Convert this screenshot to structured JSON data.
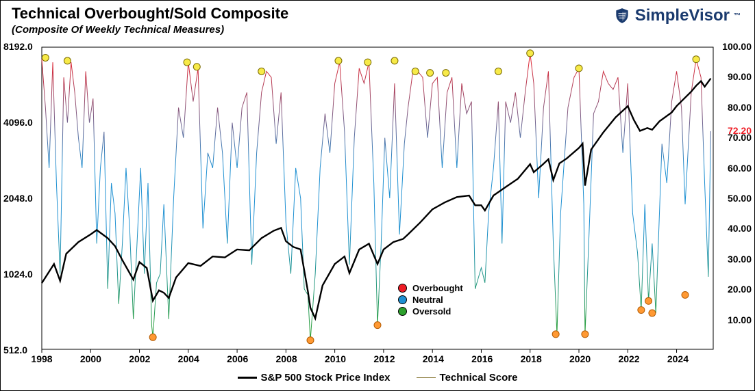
{
  "title": "Technical Overbought/Sold Composite",
  "subtitle": "(Composite Of Weekly Technical Measures)",
  "logo_text": "SimpleVisor",
  "logo_color": "#1a3a6e",
  "chart": {
    "type": "line",
    "background_color": "#ffffff",
    "border_color": "#000000",
    "x_axis": {
      "min": 1998,
      "max": 2025.5,
      "ticks": [
        1998,
        2000,
        2002,
        2004,
        2006,
        2008,
        2010,
        2012,
        2014,
        2016,
        2018,
        2020,
        2022,
        2024
      ],
      "label_fontsize": 14,
      "label_fontweight": "bold"
    },
    "y_left": {
      "scale": "log",
      "min": 512,
      "max": 8192,
      "ticks": [
        512.0,
        1024.0,
        2048.0,
        4096.0,
        8192.0
      ],
      "label_fontsize": 14,
      "label_fontweight": "bold"
    },
    "y_right": {
      "scale": "linear",
      "min": 0,
      "max": 100,
      "ticks": [
        10.0,
        20.0,
        30.0,
        40.0,
        50.0,
        60.0,
        70.0,
        80.0,
        90.0,
        100.0
      ],
      "current_value": 72.2,
      "current_color": "#ee1c25",
      "label_fontsize": 14,
      "label_fontweight": "bold"
    },
    "composite_grad": {
      "top": "#ee1c25",
      "mid": "#1e90d2",
      "bottom": "#2ca02c"
    },
    "composite_line_width": 1.0,
    "composite_series": {
      "x": [
        1998.0,
        1998.15,
        1998.3,
        1998.45,
        1998.6,
        1998.75,
        1998.9,
        1999.05,
        1999.2,
        1999.35,
        1999.5,
        1999.65,
        1999.8,
        1999.95,
        2000.1,
        2000.25,
        2000.4,
        2000.55,
        2000.7,
        2000.85,
        2001.0,
        2001.15,
        2001.3,
        2001.45,
        2001.6,
        2001.75,
        2001.9,
        2002.05,
        2002.2,
        2002.35,
        2002.5,
        2002.55,
        2002.7,
        2002.85,
        2003.0,
        2003.2,
        2003.4,
        2003.6,
        2003.8,
        2004.0,
        2004.2,
        2004.4,
        2004.6,
        2004.8,
        2005.0,
        2005.2,
        2005.4,
        2005.6,
        2005.8,
        2006.0,
        2006.2,
        2006.4,
        2006.6,
        2006.8,
        2007.0,
        2007.2,
        2007.4,
        2007.6,
        2007.8,
        2008.0,
        2008.2,
        2008.4,
        2008.6,
        2008.75,
        2008.9,
        2009.0,
        2009.2,
        2009.4,
        2009.6,
        2009.8,
        2010.0,
        2010.2,
        2010.4,
        2010.6,
        2010.8,
        2011.0,
        2011.2,
        2011.4,
        2011.6,
        2011.75,
        2011.9,
        2012.05,
        2012.25,
        2012.45,
        2012.65,
        2012.85,
        2013.0,
        2013.2,
        2013.4,
        2013.6,
        2013.8,
        2014.0,
        2014.2,
        2014.4,
        2014.6,
        2014.8,
        2015.0,
        2015.2,
        2015.4,
        2015.6,
        2015.75,
        2016.0,
        2016.15,
        2016.3,
        2016.5,
        2016.7,
        2016.85,
        2017.0,
        2017.2,
        2017.4,
        2017.6,
        2017.8,
        2018.0,
        2018.15,
        2018.35,
        2018.55,
        2018.75,
        2018.95,
        2019.1,
        2019.25,
        2019.55,
        2019.8,
        2020.0,
        2020.2,
        2020.25,
        2020.4,
        2020.6,
        2020.8,
        2021.0,
        2021.2,
        2021.4,
        2021.6,
        2021.8,
        2022.0,
        2022.2,
        2022.4,
        2022.55,
        2022.7,
        2022.85,
        2023.0,
        2023.15,
        2023.4,
        2023.6,
        2023.8,
        2024.0,
        2024.2,
        2024.35,
        2024.6,
        2024.8,
        2025.0,
        2025.15,
        2025.3,
        2025.4
      ],
      "y": [
        96,
        80,
        60,
        95,
        55,
        25,
        90,
        75,
        95,
        85,
        70,
        60,
        92,
        75,
        83,
        35,
        60,
        72,
        20,
        55,
        45,
        15,
        35,
        60,
        40,
        10,
        35,
        60,
        25,
        55,
        8,
        4,
        22,
        25,
        48,
        10,
        50,
        80,
        70,
        95,
        82,
        93,
        40,
        65,
        60,
        80,
        65,
        35,
        75,
        60,
        80,
        85,
        28,
        65,
        85,
        92,
        90,
        68,
        85,
        42,
        25,
        60,
        50,
        20,
        18,
        3,
        25,
        60,
        78,
        65,
        88,
        95,
        72,
        28,
        70,
        93,
        88,
        95,
        55,
        8,
        35,
        70,
        50,
        88,
        38,
        68,
        80,
        92,
        92,
        90,
        70,
        88,
        90,
        60,
        85,
        90,
        60,
        88,
        78,
        82,
        20,
        27,
        22,
        45,
        60,
        82,
        35,
        82,
        75,
        85,
        70,
        85,
        98,
        88,
        50,
        80,
        92,
        35,
        5,
        45,
        80,
        90,
        93,
        48,
        5,
        35,
        78,
        82,
        92,
        88,
        86,
        90,
        65,
        88,
        45,
        32,
        13,
        48,
        16,
        35,
        12,
        68,
        55,
        82,
        92,
        80,
        48,
        85,
        96,
        90,
        55,
        24,
        72.2
      ]
    },
    "sp500_color": "#000000",
    "sp500_line_width": 2.4,
    "sp500_series": {
      "x": [
        1998.0,
        1998.5,
        1998.75,
        1999.0,
        1999.5,
        2000.0,
        2000.25,
        2000.7,
        2001.0,
        2001.3,
        2001.75,
        2002.0,
        2002.3,
        2002.55,
        2002.8,
        2003.0,
        2003.2,
        2003.5,
        2004.0,
        2004.5,
        2005.0,
        2005.5,
        2006.0,
        2006.5,
        2007.0,
        2007.5,
        2007.8,
        2008.0,
        2008.3,
        2008.6,
        2008.9,
        2009.0,
        2009.2,
        2009.5,
        2010.0,
        2010.4,
        2010.6,
        2011.0,
        2011.4,
        2011.75,
        2012.0,
        2012.4,
        2012.8,
        2013.0,
        2013.5,
        2014.0,
        2014.5,
        2015.0,
        2015.5,
        2015.75,
        2016.0,
        2016.15,
        2016.5,
        2017.0,
        2017.5,
        2018.0,
        2018.15,
        2018.5,
        2018.75,
        2018.95,
        2019.2,
        2019.5,
        2020.0,
        2020.15,
        2020.25,
        2020.5,
        2021.0,
        2021.5,
        2022.0,
        2022.25,
        2022.5,
        2022.8,
        2023.0,
        2023.3,
        2023.8,
        2024.0,
        2024.3,
        2024.6,
        2024.8,
        2025.0,
        2025.15,
        2025.4
      ],
      "y": [
        940,
        1120,
        960,
        1230,
        1370,
        1470,
        1530,
        1420,
        1320,
        1160,
        970,
        1140,
        1080,
        800,
        880,
        860,
        820,
        990,
        1130,
        1100,
        1200,
        1190,
        1280,
        1270,
        1420,
        1520,
        1560,
        1380,
        1310,
        1280,
        870,
        750,
        680,
        920,
        1120,
        1200,
        1030,
        1280,
        1350,
        1120,
        1280,
        1370,
        1410,
        1470,
        1640,
        1850,
        1970,
        2070,
        2100,
        1920,
        1920,
        1830,
        2100,
        2270,
        2450,
        2800,
        2600,
        2780,
        2930,
        2420,
        2820,
        2950,
        3250,
        3380,
        2300,
        3200,
        3750,
        4300,
        4770,
        4200,
        3800,
        3900,
        3840,
        4150,
        4500,
        4770,
        5100,
        5450,
        5750,
        6000,
        5700,
        6150
      ]
    },
    "overbought_markers": {
      "fill": "#f7ea48",
      "stroke": "#7a6a00",
      "r": 5,
      "points": [
        [
          1998.15,
          96.5
        ],
        [
          1999.05,
          95.5
        ],
        [
          2003.95,
          95
        ],
        [
          2004.35,
          93.5
        ],
        [
          2007.0,
          92
        ],
        [
          2010.15,
          95.5
        ],
        [
          2011.35,
          95
        ],
        [
          2012.45,
          95.5
        ],
        [
          2013.3,
          92
        ],
        [
          2013.9,
          91.5
        ],
        [
          2014.55,
          91.5
        ],
        [
          2016.7,
          92
        ],
        [
          2018.0,
          98
        ],
        [
          2020.0,
          93
        ],
        [
          2024.8,
          96
        ]
      ]
    },
    "oversold_markers": {
      "fill": "#ff9933",
      "stroke": "#b35a00",
      "r": 5,
      "points": [
        [
          2002.55,
          4
        ],
        [
          2009.0,
          3
        ],
        [
          2011.75,
          8
        ],
        [
          2019.05,
          5
        ],
        [
          2020.25,
          5
        ],
        [
          2022.55,
          13
        ],
        [
          2022.85,
          16
        ],
        [
          2023.0,
          12
        ],
        [
          2024.35,
          18
        ]
      ]
    },
    "dot_legend": {
      "items": [
        {
          "label": "Overbought",
          "fill": "#ee1c25"
        },
        {
          "label": "Neutral",
          "fill": "#1e90d2"
        },
        {
          "label": "Oversold",
          "fill": "#2ca02c"
        }
      ],
      "fontsize": 13
    },
    "bottom_legend": {
      "items": [
        {
          "label": "S&P 500 Stock Price Index",
          "color": "#000000",
          "width": 3
        },
        {
          "label": "Technical Score",
          "color": "#8a7a3a",
          "width": 1
        }
      ],
      "fontsize": 15
    }
  }
}
